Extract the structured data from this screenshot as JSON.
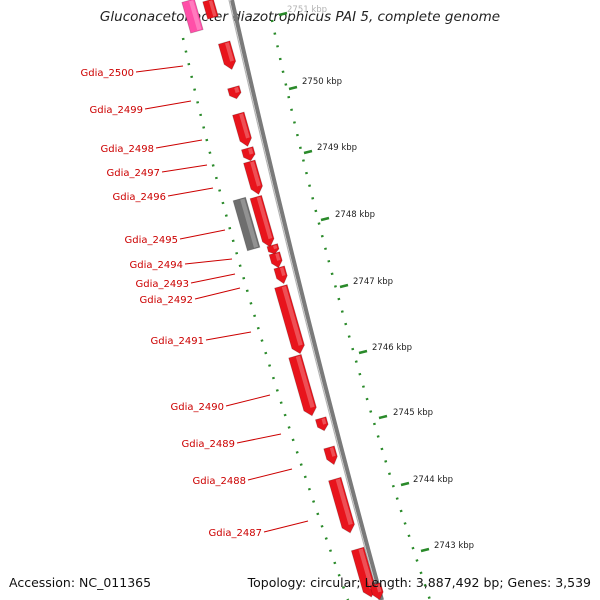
{
  "title": "Gluconacetobacter diazotrophicus PAI 5, complete genome",
  "footer": {
    "accession": "Accession: NC_011365",
    "summary": "Topology: circular; Length: 3,887,492 bp; Genes: 3,539"
  },
  "colors": {
    "gene_forward": "#e8141c",
    "gene_other": "#6e6e6e",
    "gene_top": "#ff4fa8",
    "backbone": "#7a7a7a",
    "dots": "#2a8a2a",
    "labels": "#cc0000"
  },
  "gene_labels": [
    "Gdia_2500",
    "Gdia_2499",
    "Gdia_2498",
    "Gdia_2497",
    "Gdia_2496",
    "Gdia_2495",
    "Gdia_2494",
    "Gdia_2493",
    "Gdia_2492",
    "Gdia_2491",
    "Gdia_2490",
    "Gdia_2489",
    "Gdia_2488",
    "Gdia_2487"
  ],
  "kbp_ticks": [
    "2751 kbp",
    "2750 kbp",
    "2749 kbp",
    "2748 kbp",
    "2747 kbp",
    "2746 kbp",
    "2745 kbp",
    "2744 kbp",
    "2743 kbp"
  ]
}
